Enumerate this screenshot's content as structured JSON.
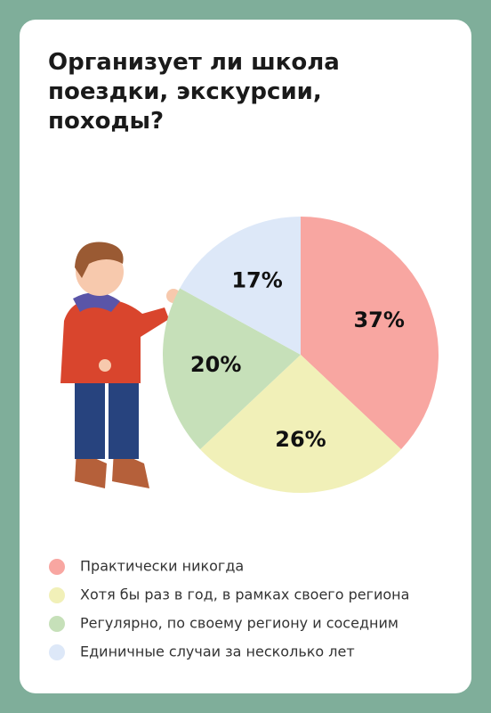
{
  "chart_data": {
    "type": "pie",
    "title": "Организует ли школа поездки, экскурсии, походы?",
    "categories": [
      "Практически никогда",
      "Хотя бы раз в год, в рамках своего региона",
      "Регулярно, по своему региону и соседним",
      "Единичные случаи за несколько лет"
    ],
    "values": [
      37,
      26,
      20,
      17
    ],
    "value_labels": [
      "37%",
      "26%",
      "20%",
      "17%"
    ],
    "colors": [
      "#f8a6a1",
      "#f1f0b8",
      "#c6e0b9",
      "#dde8f8"
    ]
  }
}
